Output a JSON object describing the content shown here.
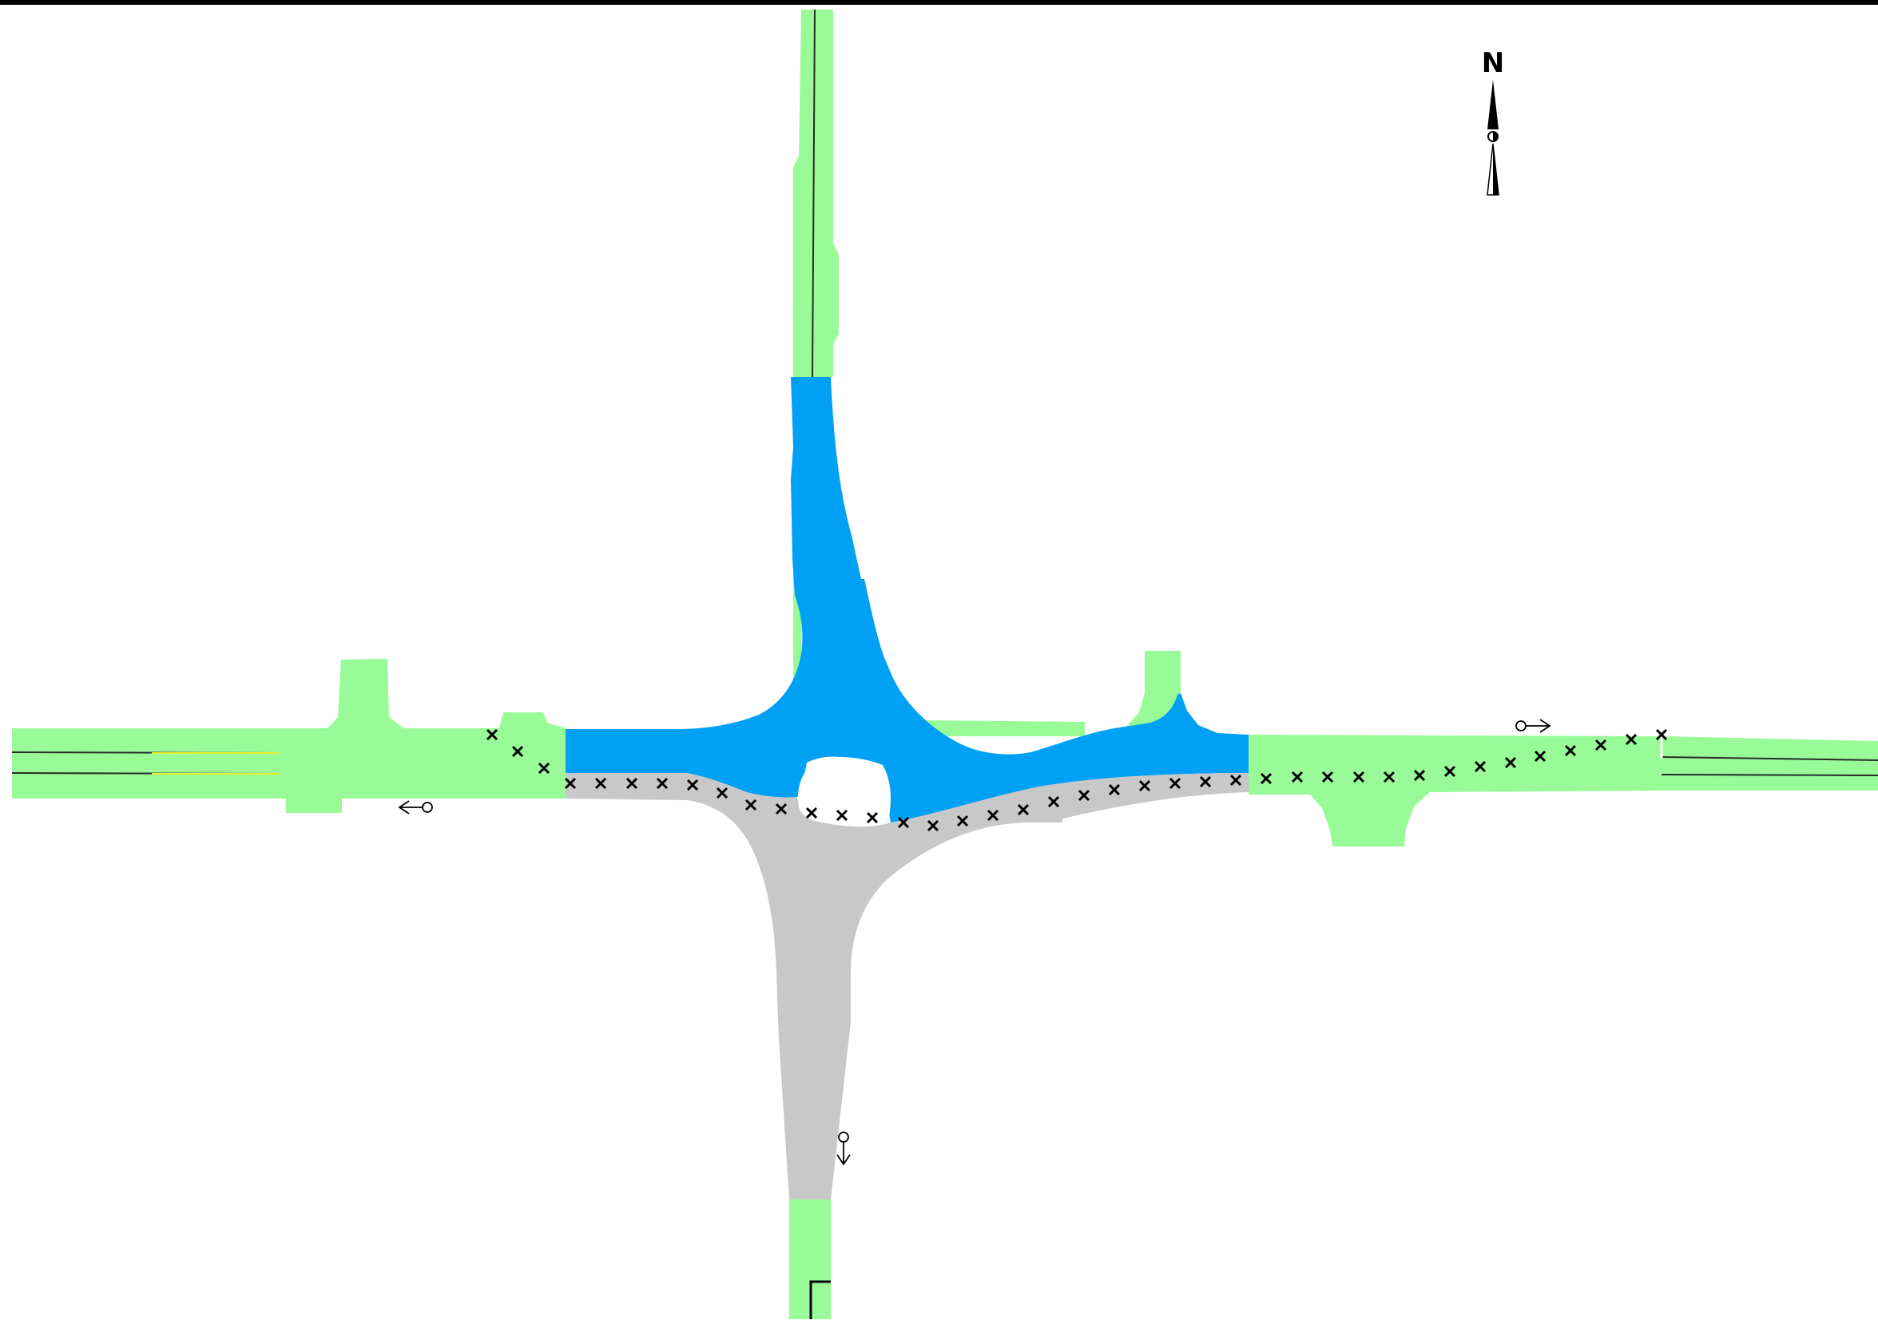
{
  "colors": {
    "background": "#ffffff",
    "road_green": "#98fb98",
    "road_blue": "#00a0f5",
    "road_gray": "#c8c8c8",
    "frame_line": "#000000",
    "centerline": "#2a2a2a",
    "centerline_yellow": "#e8ef2a",
    "marker": "#000000"
  },
  "icons": {
    "north_arrow": "north-arrow-icon",
    "direction_marker": "direction-arrow-icon",
    "cross_marker": "cross-marker-icon"
  },
  "compass": {
    "label": "N"
  },
  "road_segments": [
    {
      "name": "north-approach",
      "color_key": "road_blue"
    },
    {
      "name": "west-approach",
      "color_key": "road_green"
    },
    {
      "name": "east-approach",
      "color_key": "road_green"
    },
    {
      "name": "south-approach",
      "color_key": "road_gray"
    }
  ],
  "direction_markers": [
    {
      "name": "west-direction",
      "heading": "west"
    },
    {
      "name": "east-direction",
      "heading": "east"
    },
    {
      "name": "south-direction",
      "heading": "south"
    }
  ],
  "cross_marker_count": 44
}
